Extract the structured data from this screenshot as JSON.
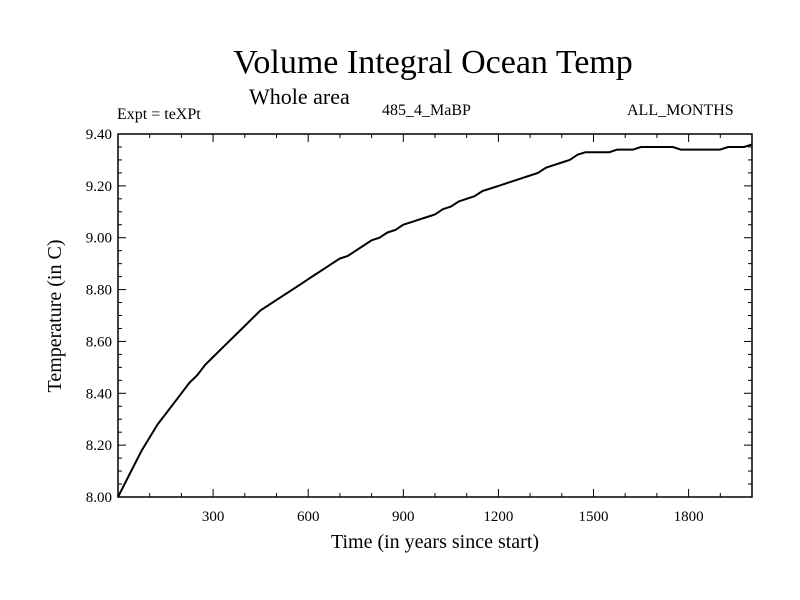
{
  "header": {
    "title": "Volume Integral Ocean Temp",
    "subtitle": "Whole area",
    "expt": "Expt = teXPt",
    "run": "485_4_MaBP",
    "months": "ALL_MONTHS"
  },
  "chart_data": {
    "type": "line",
    "title": "Volume Integral Ocean Temp",
    "subtitle": "Whole area",
    "xlabel": "Time (in years since start)",
    "ylabel": "Temperature (in C)",
    "xlim": [
      0,
      2000
    ],
    "ylim": [
      8.0,
      9.4
    ],
    "xticks": [
      300,
      600,
      900,
      1200,
      1500,
      1800
    ],
    "yticks": [
      8.0,
      8.2,
      8.4,
      8.6,
      8.8,
      9.0,
      9.2,
      9.4
    ],
    "ytick_labels": [
      "8.00",
      "8.20",
      "8.40",
      "8.60",
      "8.80",
      "9.00",
      "9.20",
      "9.40"
    ],
    "grid": false,
    "line_color": "#000000",
    "series": [
      {
        "x": [
          0,
          25,
          50,
          75,
          100,
          125,
          150,
          175,
          200,
          225,
          250,
          275,
          300,
          325,
          350,
          375,
          400,
          425,
          450,
          475,
          500,
          525,
          550,
          575,
          600,
          625,
          650,
          675,
          700,
          725,
          750,
          775,
          800,
          825,
          850,
          875,
          900,
          925,
          950,
          975,
          1000,
          1025,
          1050,
          1075,
          1100,
          1125,
          1150,
          1175,
          1200,
          1225,
          1250,
          1275,
          1300,
          1325,
          1350,
          1375,
          1400,
          1425,
          1450,
          1475,
          1500,
          1525,
          1550,
          1575,
          1600,
          1625,
          1650,
          1675,
          1700,
          1725,
          1750,
          1775,
          1800,
          1825,
          1850,
          1875,
          1900,
          1925,
          1950,
          1975,
          2000
        ],
        "y": [
          8.0,
          8.06,
          8.12,
          8.18,
          8.23,
          8.28,
          8.32,
          8.36,
          8.4,
          8.44,
          8.47,
          8.51,
          8.54,
          8.57,
          8.6,
          8.63,
          8.66,
          8.69,
          8.72,
          8.74,
          8.76,
          8.78,
          8.8,
          8.82,
          8.84,
          8.86,
          8.88,
          8.9,
          8.92,
          8.93,
          8.95,
          8.97,
          8.99,
          9.0,
          9.02,
          9.03,
          9.05,
          9.06,
          9.07,
          9.08,
          9.09,
          9.11,
          9.12,
          9.14,
          9.15,
          9.16,
          9.18,
          9.19,
          9.2,
          9.21,
          9.22,
          9.23,
          9.24,
          9.25,
          9.27,
          9.28,
          9.29,
          9.3,
          9.32,
          9.33,
          9.33,
          9.33,
          9.33,
          9.34,
          9.34,
          9.34,
          9.35,
          9.35,
          9.35,
          9.35,
          9.35,
          9.34,
          9.34,
          9.34,
          9.34,
          9.34,
          9.34,
          9.35,
          9.35,
          9.35,
          9.36
        ]
      }
    ]
  }
}
